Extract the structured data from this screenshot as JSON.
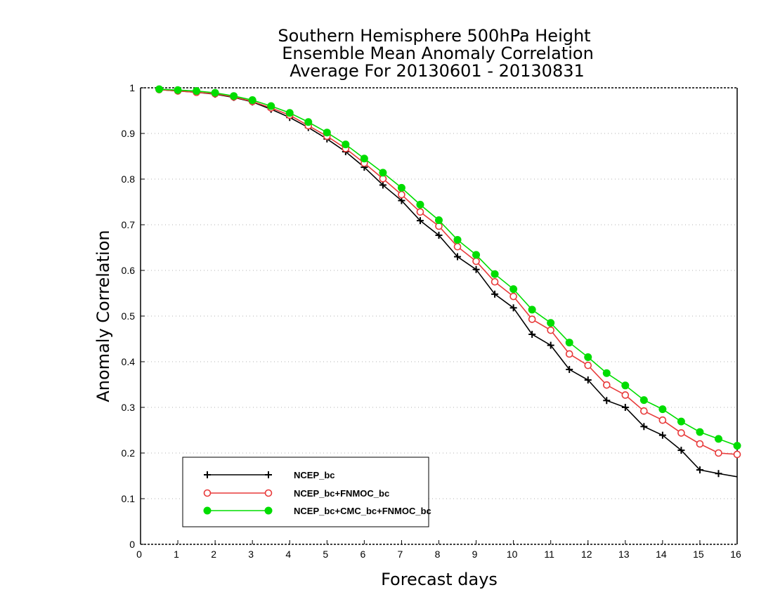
{
  "chart_data": {
    "type": "line",
    "title_lines": [
      "Southern Hemisphere 500hPa Height",
      "Ensemble Mean Anomaly Correlation",
      "Average For 20130601 - 20130831"
    ],
    "xlabel": "Forecast days",
    "ylabel": "Anomaly Correlation",
    "xlim": [
      0,
      16
    ],
    "ylim": [
      0,
      1
    ],
    "xticks": [
      "0",
      "1",
      "2",
      "3",
      "4",
      "5",
      "6",
      "7",
      "8",
      "9",
      "10",
      "11",
      "12",
      "13",
      "14",
      "15",
      "16"
    ],
    "yticks": [
      "0",
      "0.1",
      "0.2",
      "0.3",
      "0.4",
      "0.5",
      "0.6",
      "0.7",
      "0.8",
      "0.9",
      "1"
    ],
    "grid": "horizontal dotted",
    "legend_placement": "bottom-left",
    "x": [
      0.5,
      1,
      1.5,
      2,
      2.5,
      3,
      3.5,
      4,
      4.5,
      5,
      5.5,
      6,
      6.5,
      7,
      7.5,
      8,
      8.5,
      9,
      9.5,
      10,
      10.5,
      11,
      11.5,
      12,
      12.5,
      13,
      13.5,
      14,
      14.5,
      15,
      15.5,
      16
    ],
    "series": [
      {
        "name": "NCEP_bc",
        "color": "#000000",
        "marker": "plus",
        "values": [
          0.996,
          0.993,
          0.99,
          0.986,
          0.979,
          0.969,
          0.953,
          0.935,
          0.913,
          0.888,
          0.86,
          0.826,
          0.787,
          0.753,
          0.709,
          0.677,
          0.63,
          0.602,
          0.548,
          0.518,
          0.46,
          0.436,
          0.383,
          0.36,
          0.315,
          0.3,
          0.258,
          0.239,
          0.206,
          0.163,
          0.155,
          0.148
        ]
      },
      {
        "name": "NCEP_bc+FNMOC_bc",
        "color": "#e83a3a",
        "marker": "open-circle",
        "values": [
          0.996,
          0.993,
          0.99,
          0.987,
          0.98,
          0.97,
          0.956,
          0.94,
          0.917,
          0.894,
          0.867,
          0.835,
          0.801,
          0.766,
          0.728,
          0.697,
          0.652,
          0.62,
          0.575,
          0.543,
          0.493,
          0.469,
          0.417,
          0.392,
          0.349,
          0.327,
          0.292,
          0.272,
          0.244,
          0.22,
          0.2,
          0.197
        ]
      },
      {
        "name": "NCEP_bc+CMC_bc+FNMOC_bc",
        "color": "#00dd00",
        "marker": "filled-circle",
        "values": [
          0.997,
          0.995,
          0.993,
          0.989,
          0.982,
          0.973,
          0.96,
          0.945,
          0.925,
          0.902,
          0.876,
          0.845,
          0.814,
          0.781,
          0.744,
          0.71,
          0.667,
          0.634,
          0.592,
          0.559,
          0.514,
          0.485,
          0.442,
          0.41,
          0.375,
          0.348,
          0.316,
          0.296,
          0.269,
          0.246,
          0.231,
          0.216
        ]
      }
    ]
  }
}
